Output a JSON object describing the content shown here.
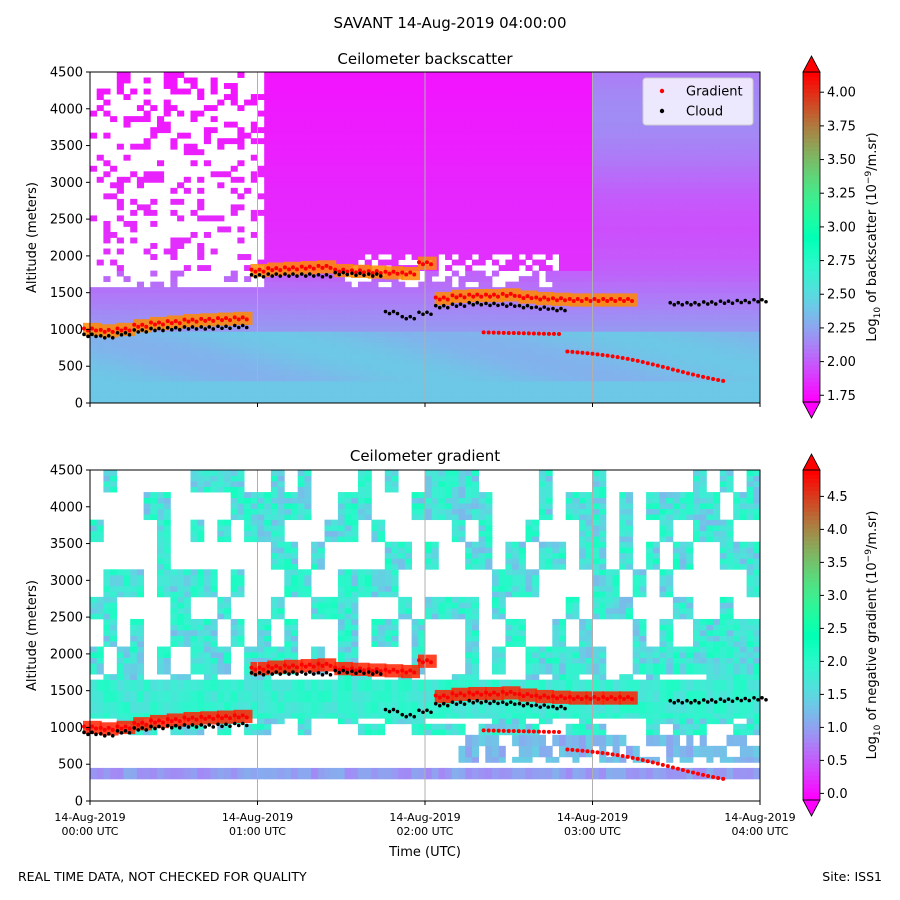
{
  "suptitle": "SAVANT 14-Aug-2019 04:00:00",
  "footer": {
    "left": "REAL TIME DATA, NOT CHECKED FOR QUALITY",
    "right": "Site: ISS1"
  },
  "chart_data": [
    {
      "type": "heatmap",
      "title": "Ceilometer backscatter",
      "ylabel": "Altitude (meters)",
      "ylim": [
        0,
        4500
      ],
      "yticks": [
        0,
        500,
        1000,
        1500,
        2000,
        2500,
        3000,
        3500,
        4000,
        4500
      ],
      "xlim_hours": [
        0,
        4
      ],
      "grid": "vertical",
      "colorbar": {
        "label": "Log10 of backscatter (10^-9/m.sr)",
        "ticks": [
          "1.75",
          "2.00",
          "2.25",
          "2.50",
          "2.75",
          "3.00",
          "3.25",
          "3.50",
          "3.75",
          "4.00"
        ],
        "range": [
          1.7,
          4.15
        ],
        "colormap": "rainbow"
      },
      "legend": {
        "placement": "top-right",
        "entries": [
          {
            "name": "Gradient",
            "color": "#ff0000"
          },
          {
            "name": "Cloud",
            "color": "#000000"
          }
        ]
      },
      "series": [
        {
          "name": "Gradient",
          "x_hours": [
            0.0,
            0.1,
            0.2,
            0.3,
            0.4,
            0.5,
            0.6,
            0.7,
            0.8,
            0.9,
            1.0,
            1.1,
            1.2,
            1.3,
            1.4,
            1.5,
            1.6,
            1.7,
            1.8,
            1.9,
            2.0,
            2.1,
            2.2,
            2.3,
            2.4,
            2.5,
            2.6,
            2.7,
            2.8,
            2.9,
            3.0,
            3.1,
            3.2
          ],
          "y": [
            1000,
            980,
            1000,
            1050,
            1080,
            1100,
            1120,
            1130,
            1140,
            1150,
            1800,
            1820,
            1830,
            1840,
            1850,
            1800,
            1790,
            1780,
            1770,
            1760,
            1900,
            1420,
            1450,
            1460,
            1460,
            1470,
            1440,
            1420,
            1410,
            1400,
            1400,
            1400,
            1400
          ]
        },
        {
          "name": "Cloud",
          "x_hours": [
            0.0,
            0.1,
            0.2,
            0.3,
            0.4,
            0.5,
            0.6,
            0.7,
            0.8,
            0.9,
            1.0,
            1.1,
            1.2,
            1.3,
            1.4,
            1.5,
            1.6,
            1.7,
            1.8,
            1.9,
            2.0,
            2.1,
            2.2,
            2.3,
            2.4,
            2.5,
            2.6,
            2.7,
            2.8,
            3.5,
            3.6,
            3.7,
            3.8,
            3.9,
            4.0
          ],
          "y": [
            920,
            900,
            940,
            980,
            1000,
            1010,
            1020,
            1020,
            1030,
            1040,
            1730,
            1740,
            1740,
            1740,
            1730,
            1760,
            1750,
            1740,
            1230,
            1160,
            1220,
            1310,
            1330,
            1350,
            1340,
            1330,
            1310,
            1290,
            1270,
            1350,
            1350,
            1360,
            1370,
            1380,
            1390
          ]
        }
      ]
    },
    {
      "type": "heatmap",
      "title": "Ceilometer gradient",
      "xlabel": "Time (UTC)",
      "ylabel": "Altitude (meters)",
      "ylim": [
        0,
        4500
      ],
      "yticks": [
        0,
        500,
        1000,
        1500,
        2000,
        2500,
        3000,
        3500,
        4000,
        4500
      ],
      "xlim_hours": [
        0,
        4
      ],
      "xticks": [
        {
          "line1": "14-Aug-2019",
          "line2": "00:00 UTC"
        },
        {
          "line1": "14-Aug-2019",
          "line2": "01:00 UTC"
        },
        {
          "line1": "14-Aug-2019",
          "line2": "02:00 UTC"
        },
        {
          "line1": "14-Aug-2019",
          "line2": "03:00 UTC"
        },
        {
          "line1": "14-Aug-2019",
          "line2": "04:00 UTC"
        }
      ],
      "grid": "vertical",
      "colorbar": {
        "label": "Log10 of negative gradient (10^-9/m.sr)",
        "ticks": [
          "0.0",
          "0.5",
          "1.0",
          "1.5",
          "2.0",
          "2.5",
          "3.0",
          "3.5",
          "4.0",
          "4.5"
        ],
        "range": [
          -0.1,
          4.9
        ],
        "colormap": "rainbow"
      }
    }
  ]
}
